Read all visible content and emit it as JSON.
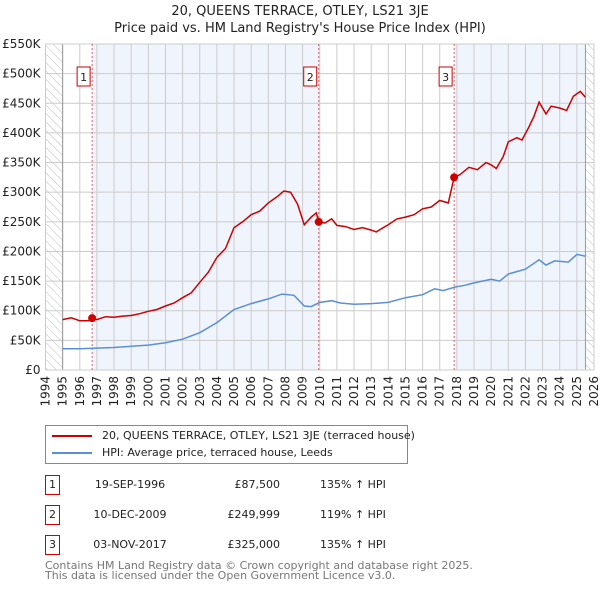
{
  "title_line1": "20, QUEENS TERRACE, OTLEY, LS21 3JE",
  "title_line2": "Price paid vs. HM Land Registry's House Price Index (HPI)",
  "colors": {
    "property": "#cc0000",
    "hpi": "#5b8fd4",
    "shade": "#f0f4fd",
    "grid": "#cccccc"
  },
  "chart_data": {
    "type": "line",
    "title": "Price paid vs. HM Land Registry's House Price Index (HPI)",
    "xlim": [
      1994,
      2026
    ],
    "ylim": [
      0,
      550000
    ],
    "x_ticks": [
      "1994",
      "1995",
      "1996",
      "1997",
      "1998",
      "1999",
      "2000",
      "2001",
      "2002",
      "2003",
      "2004",
      "2005",
      "2006",
      "2007",
      "2008",
      "2009",
      "2010",
      "2011",
      "2012",
      "2013",
      "2014",
      "2015",
      "2016",
      "2017",
      "2018",
      "2019",
      "2020",
      "2021",
      "2022",
      "2023",
      "2024",
      "2025",
      "2026"
    ],
    "y_ticks": [
      {
        "v": 0,
        "label": "£0"
      },
      {
        "v": 50000,
        "label": "£50K"
      },
      {
        "v": 100000,
        "label": "£100K"
      },
      {
        "v": 150000,
        "label": "£150K"
      },
      {
        "v": 200000,
        "label": "£200K"
      },
      {
        "v": 250000,
        "label": "£250K"
      },
      {
        "v": 300000,
        "label": "£300K"
      },
      {
        "v": 350000,
        "label": "£350K"
      },
      {
        "v": 400000,
        "label": "£400K"
      },
      {
        "v": 450000,
        "label": "£450K"
      },
      {
        "v": 500000,
        "label": "£500K"
      },
      {
        "v": 550000,
        "label": "£550K"
      }
    ],
    "data_range": [
      1995,
      2025.5
    ],
    "grid": true,
    "legend_position": "below",
    "series": [
      {
        "name": "20, QUEENS TERRACE, OTLEY, LS21 3JE (terraced house)",
        "color": "#cc0000",
        "x": [
          1995,
          1995.5,
          1996,
          1996.5,
          1996.72,
          1997,
          1997.5,
          1998,
          1998.5,
          1999,
          1999.5,
          2000,
          2000.5,
          2001,
          2001.5,
          2002,
          2002.5,
          2003,
          2003.5,
          2004,
          2004.5,
          2005,
          2005.5,
          2006,
          2006.5,
          2007,
          2007.5,
          2007.9,
          2008.3,
          2008.7,
          2009.1,
          2009.5,
          2009.8,
          2009.94,
          2010.3,
          2010.7,
          2011,
          2011.5,
          2012,
          2012.5,
          2013,
          2013.3,
          2013.7,
          2014,
          2014.5,
          2015,
          2015.5,
          2016,
          2016.5,
          2017,
          2017.5,
          2017.84,
          2018.2,
          2018.7,
          2019.2,
          2019.7,
          2020,
          2020.3,
          2020.7,
          2021,
          2021.5,
          2021.8,
          2022.2,
          2022.5,
          2022.8,
          2023.2,
          2023.5,
          2024,
          2024.4,
          2024.8,
          2025.2,
          2025.5
        ],
        "y": [
          85000,
          88000,
          83000,
          83000,
          87500,
          85000,
          90000,
          89000,
          91000,
          92000,
          95000,
          99000,
          102000,
          108000,
          113000,
          122000,
          130000,
          148000,
          165000,
          190000,
          205000,
          240000,
          250000,
          262000,
          268000,
          282000,
          292000,
          302000,
          300000,
          280000,
          245000,
          258000,
          265000,
          249999,
          248000,
          255000,
          244000,
          242000,
          237000,
          240000,
          236000,
          233000,
          240000,
          245000,
          255000,
          258000,
          262000,
          272000,
          275000,
          286000,
          282000,
          325000,
          330000,
          342000,
          338000,
          350000,
          346000,
          340000,
          360000,
          385000,
          392000,
          388000,
          410000,
          428000,
          452000,
          432000,
          445000,
          442000,
          438000,
          462000,
          470000,
          460000
        ]
      },
      {
        "name": "HPI: Average price, terraced house, Leeds",
        "color": "#5b8fd4",
        "x": [
          1995,
          1996,
          1997,
          1998,
          1999,
          2000,
          2001,
          2002,
          2003,
          2004,
          2005,
          2006,
          2007,
          2007.8,
          2008.5,
          2009.1,
          2009.5,
          2010,
          2010.7,
          2011.2,
          2012,
          2013,
          2014,
          2015,
          2016,
          2016.7,
          2017.2,
          2017.9,
          2018.5,
          2019,
          2020,
          2020.5,
          2021,
          2022,
          2022.8,
          2023.2,
          2023.7,
          2024.5,
          2025,
          2025.5
        ],
        "y": [
          36000,
          36000,
          37000,
          38000,
          40000,
          42000,
          46000,
          52000,
          63000,
          80000,
          102000,
          112000,
          120000,
          128000,
          126000,
          108000,
          107000,
          114000,
          117000,
          113000,
          111000,
          112000,
          114000,
          122000,
          127000,
          137000,
          134000,
          140000,
          143000,
          147000,
          153000,
          150000,
          162000,
          170000,
          186000,
          177000,
          184000,
          182000,
          195000,
          192000
        ]
      }
    ],
    "annotations": [
      {
        "label": "1",
        "x": 1996.72,
        "y": 87500
      },
      {
        "label": "2",
        "x": 2009.94,
        "y": 249999
      },
      {
        "label": "3",
        "x": 2017.84,
        "y": 325000
      }
    ]
  },
  "legend": [
    {
      "label": "20, QUEENS TERRACE, OTLEY, LS21 3JE (terraced house)"
    },
    {
      "label": "HPI: Average price, terraced house, Leeds"
    }
  ],
  "sales": [
    {
      "num": "1",
      "date": "19-SEP-1996",
      "price": "£87,500",
      "hpi": "135% ↑ HPI"
    },
    {
      "num": "2",
      "date": "10-DEC-2009",
      "price": "£249,999",
      "hpi": "119% ↑ HPI"
    },
    {
      "num": "3",
      "date": "03-NOV-2017",
      "price": "£325,000",
      "hpi": "135% ↑ HPI"
    }
  ],
  "footer": {
    "line1": "Contains HM Land Registry data © Crown copyright and database right 2025.",
    "line2": "This data is licensed under the Open Government Licence v3.0."
  }
}
